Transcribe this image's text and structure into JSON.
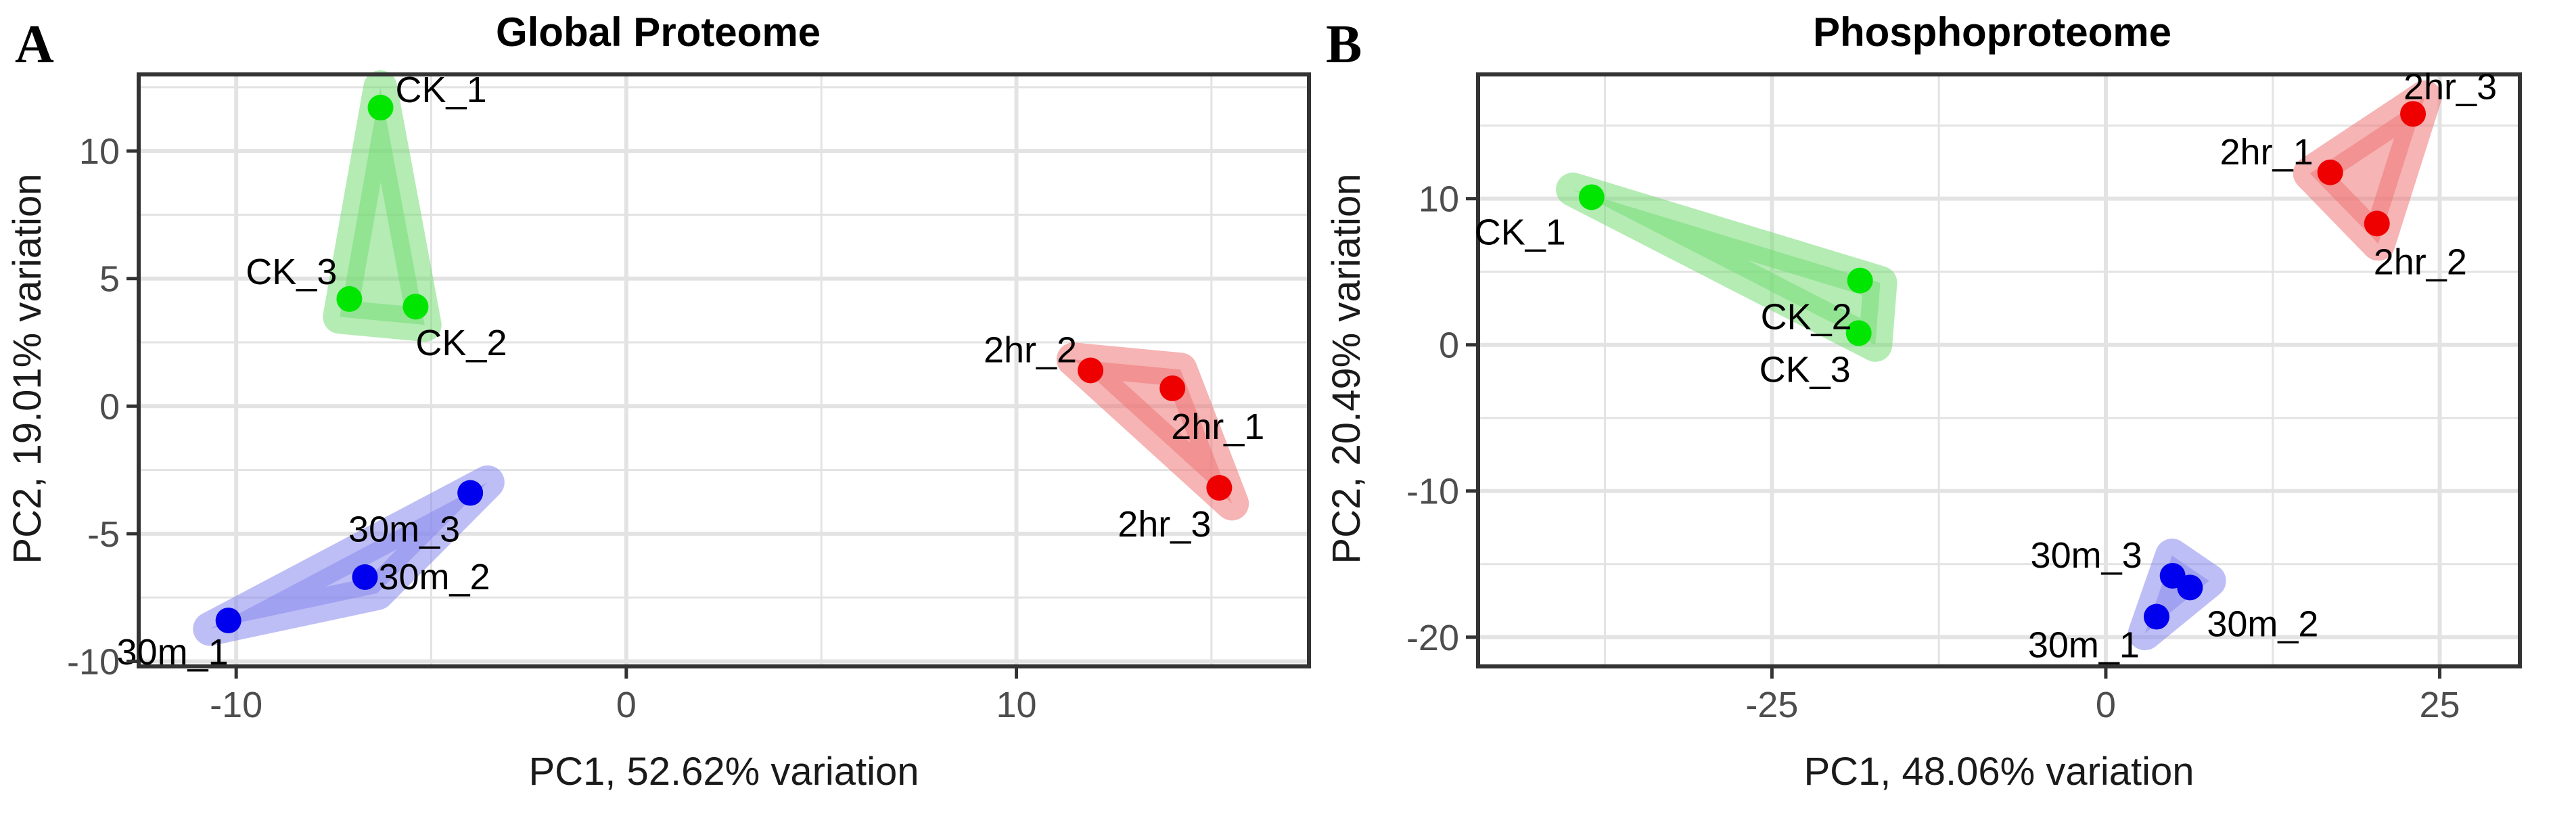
{
  "chart_data": [
    {
      "type": "scatter",
      "panel_letter": "A",
      "title": "Global Proteome",
      "xlabel": "PC1, 52.62% variation",
      "ylabel": "PC2, 19.01% variation",
      "xlim": [
        -12.5,
        17.5
      ],
      "ylim": [
        -10.2,
        13.0
      ],
      "xticks": [
        -10,
        0,
        10
      ],
      "yticks": [
        -10,
        -5,
        0,
        5,
        10
      ],
      "grid": true,
      "legend": "none",
      "groups": [
        {
          "name": "CK",
          "color": "#00e600",
          "hull_color": "#77dd77"
        },
        {
          "name": "2hr",
          "color": "#ee0000",
          "hull_color": "#ee7777"
        },
        {
          "name": "30m",
          "color": "#0000ee",
          "hull_color": "#8888ee"
        }
      ],
      "points": [
        {
          "label": "CK_1",
          "group": "CK",
          "x": -6.3,
          "y": 11.7
        },
        {
          "label": "CK_2",
          "group": "CK",
          "x": -5.4,
          "y": 3.9
        },
        {
          "label": "CK_3",
          "group": "CK",
          "x": -7.1,
          "y": 4.2
        },
        {
          "label": "2hr_1",
          "group": "2hr",
          "x": 14.0,
          "y": 0.7
        },
        {
          "label": "2hr_2",
          "group": "2hr",
          "x": 11.9,
          "y": 1.4
        },
        {
          "label": "2hr_3",
          "group": "2hr",
          "x": 15.2,
          "y": -3.2
        },
        {
          "label": "30m_1",
          "group": "30m",
          "x": -10.2,
          "y": -8.4
        },
        {
          "label": "30m_2",
          "group": "30m",
          "x": -6.7,
          "y": -6.7
        },
        {
          "label": "30m_3",
          "group": "30m",
          "x": -4.0,
          "y": -3.4
        }
      ]
    },
    {
      "type": "scatter",
      "panel_letter": "B",
      "title": "Phosphoproteome",
      "xlabel": "PC1, 48.06% variation",
      "ylabel": "PC2, 20.49% variation",
      "xlim": [
        -47,
        31
      ],
      "ylim": [
        -22,
        18.5
      ],
      "xticks": [
        -25,
        0,
        25
      ],
      "yticks": [
        -20,
        -10,
        0,
        10
      ],
      "grid": true,
      "legend": "none",
      "groups": [
        {
          "name": "CK",
          "color": "#00e600",
          "hull_color": "#77dd77"
        },
        {
          "name": "2hr",
          "color": "#ee0000",
          "hull_color": "#ee7777"
        },
        {
          "name": "30m",
          "color": "#0000ee",
          "hull_color": "#8888ee"
        }
      ],
      "points": [
        {
          "label": "CK_1",
          "group": "CK",
          "x": -38.5,
          "y": 10.1
        },
        {
          "label": "CK_2",
          "group": "CK",
          "x": -18.4,
          "y": 4.4
        },
        {
          "label": "CK_3",
          "group": "CK",
          "x": -18.5,
          "y": 0.8
        },
        {
          "label": "2hr_1",
          "group": "2hr",
          "x": 16.8,
          "y": 11.8
        },
        {
          "label": "2hr_2",
          "group": "2hr",
          "x": 20.3,
          "y": 8.3
        },
        {
          "label": "2hr_3",
          "group": "2hr",
          "x": 23.0,
          "y": 15.8
        },
        {
          "label": "30m_1",
          "group": "30m",
          "x": 3.8,
          "y": -18.6
        },
        {
          "label": "30m_2",
          "group": "30m",
          "x": 6.3,
          "y": -16.6
        },
        {
          "label": "30m_3",
          "group": "30m",
          "x": 5.0,
          "y": -15.8
        }
      ]
    }
  ]
}
